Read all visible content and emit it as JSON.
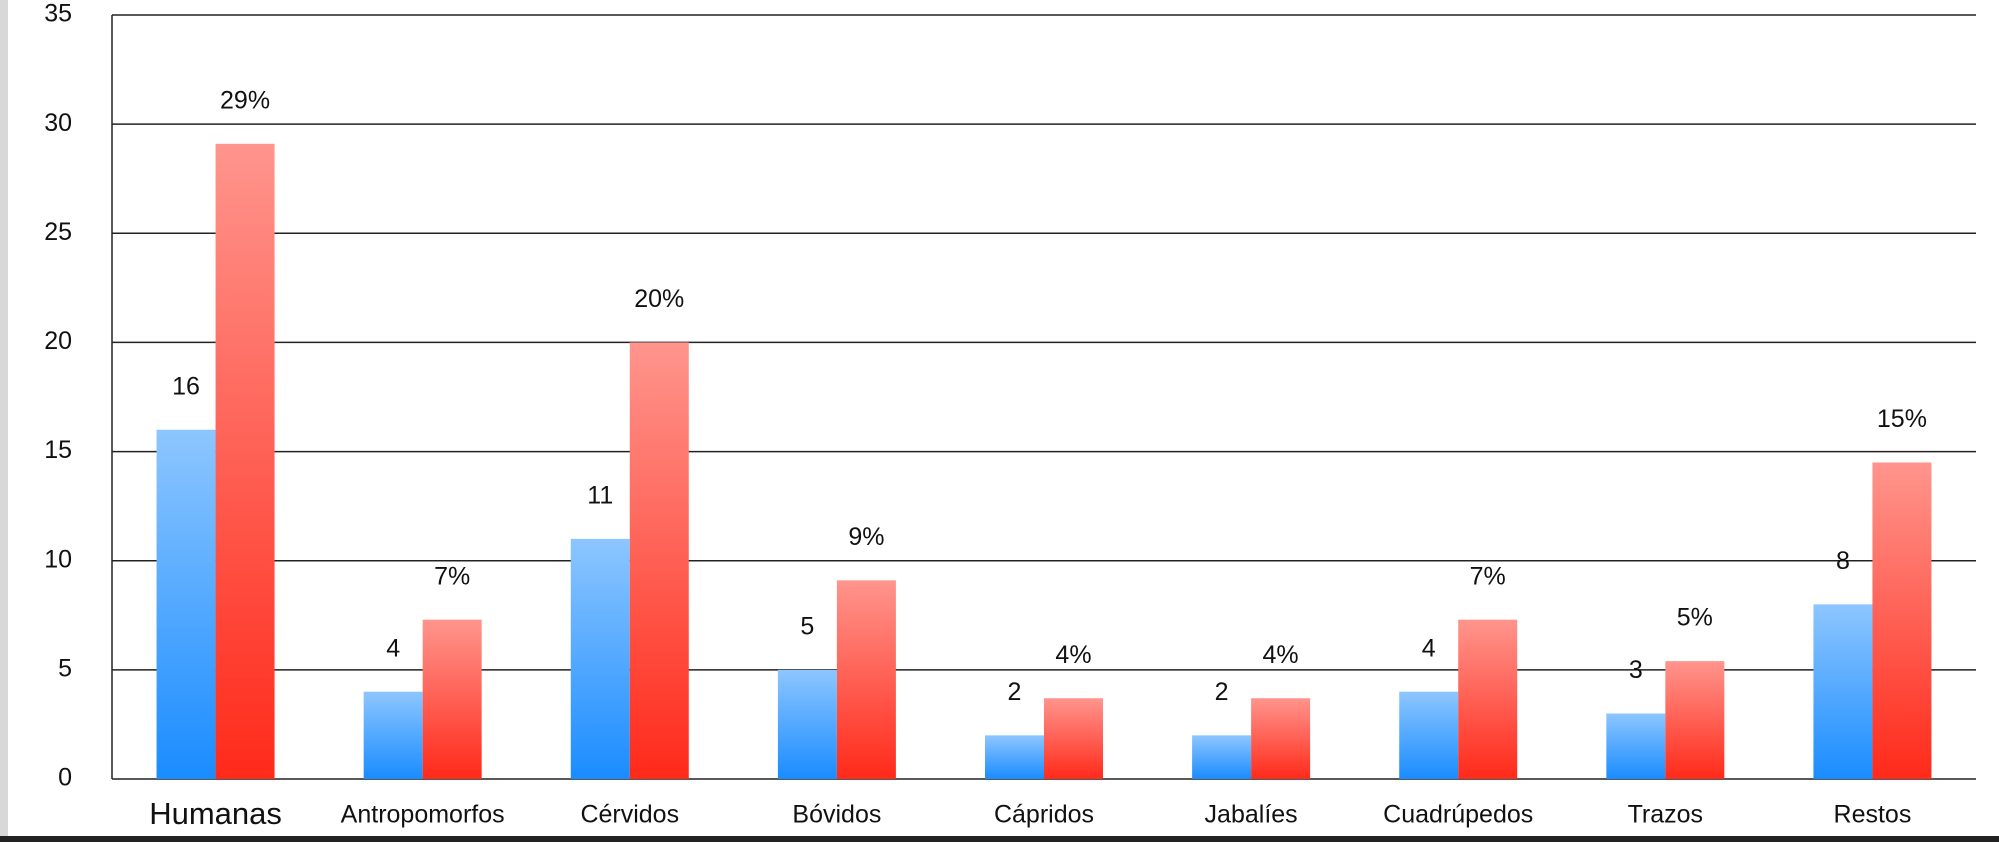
{
  "chart_data": {
    "type": "bar",
    "categories": [
      "Humanas",
      "Antropomorfos",
      "Cérvidos",
      "Bóvidos",
      "Cápridos",
      "Jabalíes",
      "Cuadrúpedos",
      "Trazos",
      "Restos"
    ],
    "series": [
      {
        "color": "#1a8cff",
        "values": [
          16,
          4,
          11,
          5,
          2,
          2,
          4,
          3,
          8
        ]
      },
      {
        "color": "#ff2a1a",
        "values": [
          29.1,
          7.3,
          20,
          9.1,
          3.7,
          3.7,
          7.3,
          5.4,
          14.5
        ],
        "value_labels": [
          "29%",
          "7%",
          "20%",
          "9%",
          "4%",
          "4%",
          "7%",
          "5%",
          "15%"
        ]
      }
    ],
    "ylim": [
      0,
      35
    ],
    "yticks": [
      0,
      5,
      10,
      15,
      20,
      25,
      30,
      35
    ],
    "grid": true
  }
}
